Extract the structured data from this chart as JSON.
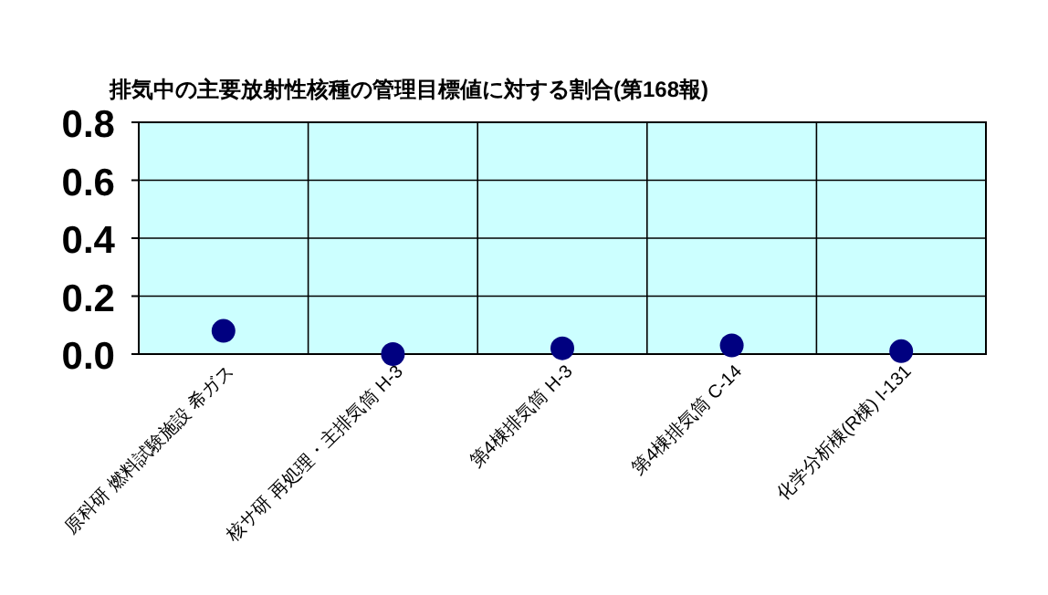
{
  "chart_data": {
    "type": "scatter",
    "title": "排気中の主要放射性核種の管理目標値に対する割合(第168報)",
    "categories": [
      "原科研 燃料試験施設 希ガス",
      "核サ研 再処理・主排気筒 H-3",
      "第4棟排気筒 H-3",
      "第4棟排気筒 C-14",
      "化学分析棟(R棟) I-131"
    ],
    "series": [
      {
        "color": "#000080",
        "values": [
          0.08,
          0.0,
          0.02,
          0.03,
          0.01
        ]
      }
    ],
    "ylim": [
      0,
      0.8
    ],
    "yticks": [
      {
        "value": 0,
        "label": "0.0"
      },
      {
        "value": 0.2,
        "label": "0.2"
      },
      {
        "value": 0.4,
        "label": "0.4"
      },
      {
        "value": 0.6,
        "label": "0.6"
      },
      {
        "value": 0.8,
        "label": "0.8"
      }
    ],
    "grid": true,
    "marker": "circle"
  }
}
